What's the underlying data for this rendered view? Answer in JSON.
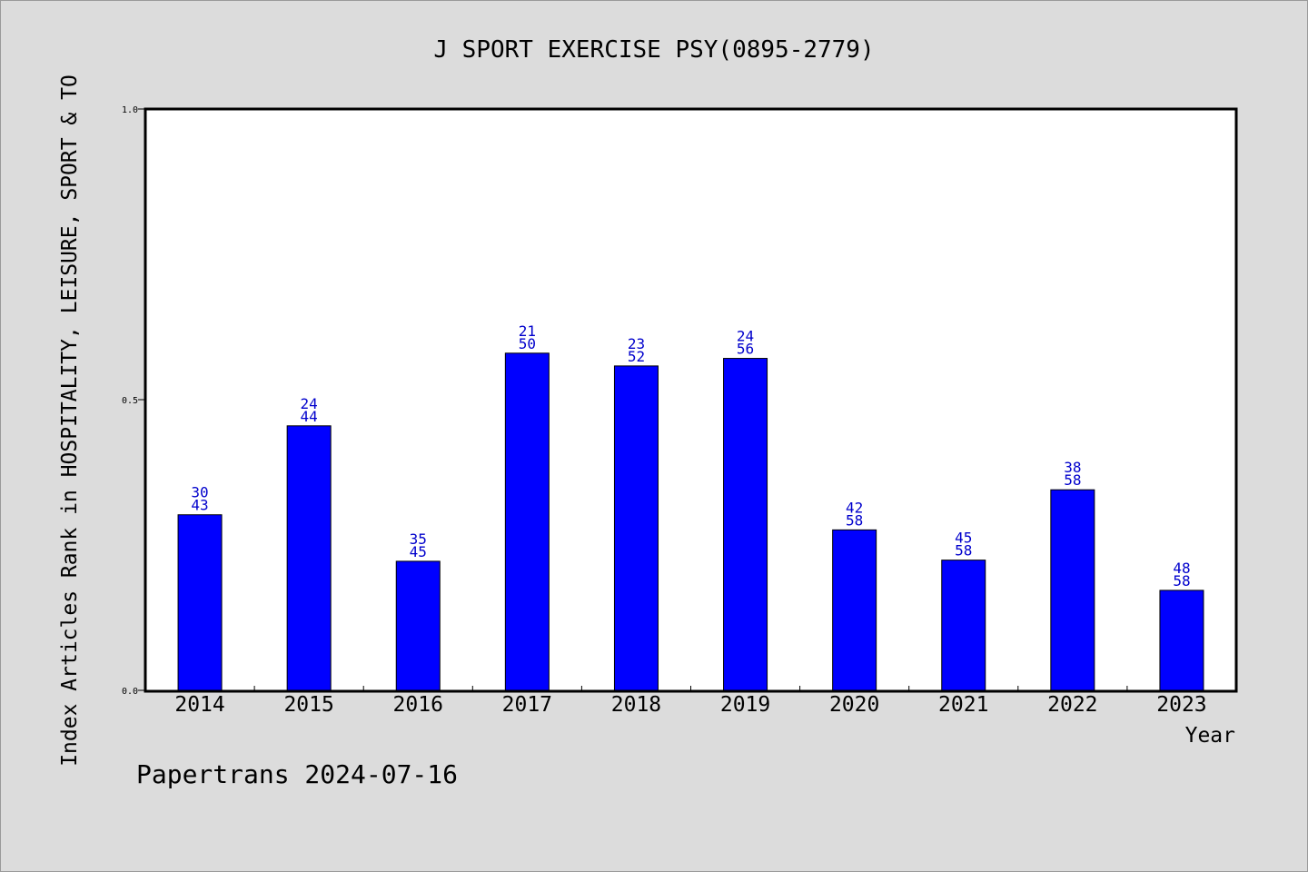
{
  "chart_data": {
    "type": "bar",
    "title": "J SPORT EXERCISE PSY(0895-2779)",
    "xlabel": "Year",
    "ylabel": "Index Articles Rank in HOSPITALITY, LEISURE, SPORT & TO",
    "ylim": [
      0,
      1
    ],
    "yticks": [
      "0.0",
      "0.5",
      "1.0"
    ],
    "grid": false,
    "categories": [
      "2014",
      "2015",
      "2016",
      "2017",
      "2018",
      "2019",
      "2020",
      "2021",
      "2022",
      "2023"
    ],
    "values": [
      0.302,
      0.455,
      0.222,
      0.58,
      0.558,
      0.571,
      0.276,
      0.224,
      0.345,
      0.172
    ],
    "rank": [
      "30",
      "24",
      "35",
      "21",
      "23",
      "24",
      "42",
      "45",
      "38",
      "48"
    ],
    "total": [
      "43",
      "44",
      "45",
      "50",
      "52",
      "56",
      "58",
      "58",
      "58",
      "58"
    ],
    "bar_color": "#0000ff",
    "label_color": "#0000cc"
  },
  "footer": "Papertrans 2024-07-16"
}
